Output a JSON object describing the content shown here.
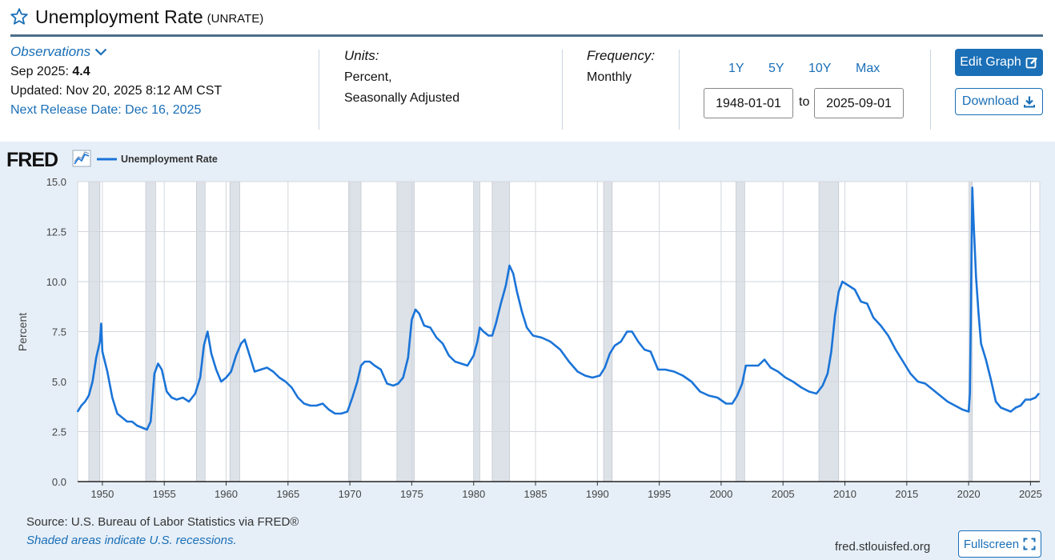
{
  "header": {
    "title": "Unemployment Rate",
    "series_id": "(UNRATE)"
  },
  "meta": {
    "observations_label": "Observations",
    "latest_period": "Sep 2025:",
    "latest_value": "4.4",
    "updated": "Updated: Nov 20, 2025 8:12 AM CST",
    "next_release": "Next Release Date: Dec 16, 2025",
    "units_label": "Units:",
    "units_line1": "Percent,",
    "units_line2": "Seasonally Adjusted",
    "frequency_label": "Frequency:",
    "frequency_value": "Monthly"
  },
  "range": {
    "btn_1y": "1Y",
    "btn_5y": "5Y",
    "btn_10y": "10Y",
    "btn_max": "Max",
    "start": "1948-01-01",
    "to": "to",
    "end": "2025-09-01"
  },
  "actions": {
    "edit_graph": "Edit Graph",
    "download": "Download",
    "fullscreen": "Fullscreen"
  },
  "footer": {
    "source": "Source: U.S. Bureau of Labor Statistics via FRED®",
    "shaded_note": "Shaded areas indicate U.S. recessions.",
    "site": "fred.stlouisfed.org"
  },
  "colors": {
    "accent": "#1a6fb7",
    "series": "#1a74d8",
    "panel_bg": "#e6eff8",
    "recession": "#dde2e8"
  },
  "chart_data": {
    "type": "line",
    "logo": "FRED",
    "legend": [
      "Unemployment Rate"
    ],
    "title": "Unemployment Rate",
    "ylabel": "Percent",
    "xlabel": "",
    "ylim": [
      0,
      15
    ],
    "xlim": [
      1948.0,
      2025.75
    ],
    "yticks": [
      0,
      2.5,
      5,
      7.5,
      10,
      12.5,
      15
    ],
    "ytick_labels": [
      "0.0",
      "2.5",
      "5.0",
      "7.5",
      "10.0",
      "12.5",
      "15.0"
    ],
    "xticks": [
      1950,
      1955,
      1960,
      1965,
      1970,
      1975,
      1980,
      1985,
      1990,
      1995,
      2000,
      2005,
      2010,
      2015,
      2020,
      2025
    ],
    "grid": true,
    "recessions": [
      [
        1948.9,
        1949.8
      ],
      [
        1953.5,
        1954.3
      ],
      [
        1957.6,
        1958.3
      ],
      [
        1960.3,
        1961.1
      ],
      [
        1969.9,
        1970.9
      ],
      [
        1973.8,
        1975.2
      ],
      [
        1980.0,
        1980.5
      ],
      [
        1981.5,
        1982.9
      ],
      [
        1990.5,
        1991.2
      ],
      [
        2001.2,
        2001.9
      ],
      [
        2007.9,
        2009.5
      ],
      [
        2020.1,
        2020.3
      ]
    ],
    "series": [
      {
        "name": "Unemployment Rate",
        "x": [
          1948.0,
          1948.3,
          1948.6,
          1948.9,
          1949.2,
          1949.5,
          1949.8,
          1949.9,
          1950.0,
          1950.4,
          1950.8,
          1951.2,
          1951.6,
          1952.0,
          1952.4,
          1952.8,
          1953.2,
          1953.6,
          1953.9,
          1954.2,
          1954.5,
          1954.8,
          1955.2,
          1955.6,
          1956.0,
          1956.5,
          1957.0,
          1957.5,
          1957.9,
          1958.2,
          1958.5,
          1958.8,
          1959.2,
          1959.6,
          1960.0,
          1960.4,
          1960.8,
          1961.2,
          1961.5,
          1961.9,
          1962.3,
          1962.8,
          1963.3,
          1963.8,
          1964.3,
          1964.8,
          1965.3,
          1965.8,
          1966.3,
          1966.8,
          1967.3,
          1967.8,
          1968.3,
          1968.8,
          1969.3,
          1969.8,
          1970.2,
          1970.6,
          1970.9,
          1971.2,
          1971.6,
          1972.0,
          1972.5,
          1973.0,
          1973.5,
          1973.9,
          1974.3,
          1974.7,
          1975.0,
          1975.3,
          1975.6,
          1976.0,
          1976.5,
          1977.0,
          1977.5,
          1978.0,
          1978.5,
          1979.0,
          1979.5,
          1980.0,
          1980.3,
          1980.5,
          1980.8,
          1981.2,
          1981.5,
          1981.8,
          1982.2,
          1982.6,
          1982.9,
          1983.2,
          1983.5,
          1983.9,
          1984.3,
          1984.8,
          1985.5,
          1986.2,
          1987.0,
          1987.7,
          1988.4,
          1989.0,
          1989.6,
          1990.2,
          1990.6,
          1991.0,
          1991.4,
          1991.9,
          1992.4,
          1992.8,
          1993.3,
          1993.8,
          1994.3,
          1994.9,
          1995.5,
          1996.2,
          1996.9,
          1997.6,
          1998.3,
          1999.0,
          1999.7,
          2000.4,
          2000.9,
          2001.3,
          2001.7,
          2002.0,
          2002.5,
          2003.0,
          2003.5,
          2004.0,
          2004.6,
          2005.2,
          2005.8,
          2006.5,
          2007.1,
          2007.7,
          2008.2,
          2008.6,
          2008.9,
          2009.2,
          2009.5,
          2009.8,
          2010.3,
          2010.8,
          2011.3,
          2011.8,
          2012.3,
          2012.9,
          2013.5,
          2014.1,
          2014.7,
          2015.3,
          2015.9,
          2016.5,
          2017.1,
          2017.7,
          2018.3,
          2018.9,
          2019.5,
          2020.0,
          2020.1,
          2020.3,
          2020.4,
          2020.6,
          2020.8,
          2021.0,
          2021.4,
          2021.8,
          2022.2,
          2022.6,
          2023.0,
          2023.4,
          2023.8,
          2024.2,
          2024.6,
          2025.0,
          2025.4,
          2025.67
        ],
        "values": [
          3.5,
          3.8,
          4.0,
          4.3,
          5.0,
          6.2,
          7.0,
          7.9,
          6.5,
          5.5,
          4.2,
          3.4,
          3.2,
          3.0,
          3.0,
          2.8,
          2.7,
          2.6,
          3.0,
          5.4,
          5.9,
          5.6,
          4.5,
          4.2,
          4.1,
          4.2,
          4.0,
          4.4,
          5.2,
          6.8,
          7.5,
          6.4,
          5.6,
          5.0,
          5.2,
          5.5,
          6.3,
          6.9,
          7.1,
          6.3,
          5.5,
          5.6,
          5.7,
          5.5,
          5.2,
          5.0,
          4.7,
          4.2,
          3.9,
          3.8,
          3.8,
          3.9,
          3.6,
          3.4,
          3.4,
          3.5,
          4.2,
          5.0,
          5.8,
          6.0,
          6.0,
          5.8,
          5.6,
          4.9,
          4.8,
          4.9,
          5.2,
          6.2,
          8.1,
          8.6,
          8.4,
          7.8,
          7.7,
          7.2,
          6.9,
          6.3,
          6.0,
          5.9,
          5.8,
          6.3,
          7.0,
          7.7,
          7.5,
          7.3,
          7.3,
          7.9,
          8.9,
          9.8,
          10.8,
          10.4,
          9.5,
          8.5,
          7.7,
          7.3,
          7.2,
          7.0,
          6.6,
          6.0,
          5.5,
          5.3,
          5.2,
          5.3,
          5.7,
          6.4,
          6.8,
          7.0,
          7.5,
          7.5,
          7.0,
          6.6,
          6.5,
          5.6,
          5.6,
          5.5,
          5.3,
          5.0,
          4.5,
          4.3,
          4.2,
          3.9,
          3.9,
          4.3,
          4.9,
          5.8,
          5.8,
          5.8,
          6.1,
          5.7,
          5.5,
          5.2,
          5.0,
          4.7,
          4.5,
          4.4,
          4.8,
          5.4,
          6.5,
          8.3,
          9.5,
          10.0,
          9.8,
          9.6,
          9.0,
          8.9,
          8.2,
          7.8,
          7.3,
          6.6,
          6.0,
          5.4,
          5.0,
          4.9,
          4.6,
          4.3,
          4.0,
          3.8,
          3.6,
          3.5,
          4.4,
          14.7,
          13.0,
          10.2,
          8.4,
          6.9,
          6.1,
          5.1,
          4.0,
          3.7,
          3.6,
          3.5,
          3.7,
          3.8,
          4.1,
          4.1,
          4.2,
          4.4
        ]
      }
    ]
  }
}
